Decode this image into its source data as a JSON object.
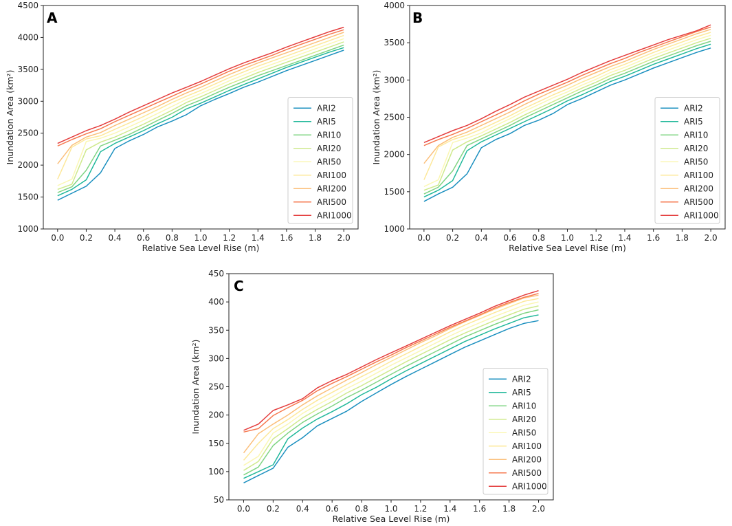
{
  "figure": {
    "series_names": [
      "ARI2",
      "ARI5",
      "ARI10",
      "ARI20",
      "ARI50",
      "ARI100",
      "ARI200",
      "ARI500",
      "ARI1000"
    ],
    "series_colors": [
      "#1a8fbf",
      "#20b89a",
      "#7fd483",
      "#cfe98c",
      "#fbf7b4",
      "#fde89a",
      "#fbbf7a",
      "#f6794f",
      "#e43d3d"
    ],
    "x_ticks": [
      "0.0",
      "0.2",
      "0.4",
      "0.6",
      "0.8",
      "1.0",
      "1.2",
      "1.4",
      "1.6",
      "1.8",
      "2.0"
    ]
  },
  "chart_data": [
    {
      "id": "A",
      "type": "line",
      "panel_label": "A",
      "xlabel": "Relative Sea Level Rise (m)",
      "ylabel": "Inundation Area (km²)",
      "xlim": [
        -0.1,
        2.1
      ],
      "ylim": [
        1000,
        4500
      ],
      "y_ticks": [
        1000,
        1500,
        2000,
        2500,
        3000,
        3500,
        4000,
        4500
      ],
      "legend_loc": "lower-right",
      "x": [
        0.0,
        0.1,
        0.2,
        0.3,
        0.4,
        0.5,
        0.6,
        0.7,
        0.8,
        0.9,
        1.0,
        1.1,
        1.2,
        1.3,
        1.4,
        1.5,
        1.6,
        1.7,
        1.8,
        1.9,
        2.0
      ],
      "series": [
        {
          "name": "ARI2",
          "values": [
            1450,
            1560,
            1670,
            1880,
            2260,
            2380,
            2480,
            2600,
            2690,
            2790,
            2930,
            3030,
            3120,
            3220,
            3300,
            3390,
            3480,
            3560,
            3640,
            3720,
            3800
          ]
        },
        {
          "name": "ARI5",
          "values": [
            1520,
            1620,
            1770,
            2210,
            2340,
            2440,
            2540,
            2650,
            2750,
            2880,
            2970,
            3070,
            3170,
            3260,
            3350,
            3440,
            3530,
            3610,
            3690,
            3770,
            3840
          ]
        },
        {
          "name": "ARI10",
          "values": [
            1570,
            1660,
            1920,
            2300,
            2390,
            2480,
            2590,
            2700,
            2810,
            2930,
            3020,
            3120,
            3220,
            3310,
            3400,
            3480,
            3560,
            3640,
            3720,
            3800,
            3880
          ]
        },
        {
          "name": "ARI20",
          "values": [
            1620,
            1700,
            2240,
            2360,
            2440,
            2540,
            2640,
            2750,
            2860,
            2980,
            3070,
            3170,
            3270,
            3360,
            3450,
            3530,
            3610,
            3690,
            3770,
            3850,
            3930
          ]
        },
        {
          "name": "ARI50",
          "values": [
            1680,
            1780,
            2370,
            2420,
            2500,
            2600,
            2700,
            2810,
            2920,
            3030,
            3120,
            3220,
            3320,
            3410,
            3500,
            3580,
            3660,
            3740,
            3820,
            3900,
            3980
          ]
        },
        {
          "name": "ARI100",
          "values": [
            1780,
            2280,
            2410,
            2460,
            2560,
            2660,
            2760,
            2870,
            2980,
            3080,
            3170,
            3270,
            3370,
            3460,
            3550,
            3630,
            3710,
            3790,
            3870,
            3950,
            4030
          ]
        },
        {
          "name": "ARI200",
          "values": [
            2020,
            2310,
            2440,
            2510,
            2620,
            2720,
            2820,
            2920,
            3030,
            3130,
            3220,
            3320,
            3420,
            3510,
            3600,
            3680,
            3760,
            3840,
            3920,
            4000,
            4080
          ]
        },
        {
          "name": "ARI500",
          "values": [
            2300,
            2400,
            2490,
            2570,
            2680,
            2780,
            2880,
            2980,
            3080,
            3180,
            3270,
            3370,
            3470,
            3560,
            3640,
            3720,
            3810,
            3890,
            3970,
            4050,
            4120
          ]
        },
        {
          "name": "ARI1000",
          "values": [
            2340,
            2440,
            2540,
            2620,
            2720,
            2830,
            2930,
            3030,
            3130,
            3220,
            3310,
            3410,
            3510,
            3600,
            3680,
            3760,
            3850,
            3930,
            4010,
            4090,
            4160
          ]
        }
      ]
    },
    {
      "id": "B",
      "type": "line",
      "panel_label": "B",
      "xlabel": "Relative Sea Level Rise (m)",
      "ylabel": "Inundation Area (km²)",
      "xlim": [
        -0.1,
        2.1
      ],
      "ylim": [
        1000,
        4000
      ],
      "y_ticks": [
        1000,
        1500,
        2000,
        2500,
        3000,
        3500,
        4000
      ],
      "legend_loc": "lower-right",
      "x": [
        0.0,
        0.1,
        0.2,
        0.3,
        0.4,
        0.5,
        0.6,
        0.7,
        0.8,
        0.9,
        1.0,
        1.1,
        1.2,
        1.3,
        1.4,
        1.5,
        1.6,
        1.7,
        1.8,
        1.9,
        2.0
      ],
      "series": [
        {
          "name": "ARI2",
          "values": [
            1370,
            1470,
            1560,
            1740,
            2090,
            2200,
            2280,
            2390,
            2460,
            2550,
            2670,
            2750,
            2840,
            2930,
            3000,
            3080,
            3160,
            3230,
            3300,
            3370,
            3430
          ]
        },
        {
          "name": "ARI5",
          "values": [
            1430,
            1520,
            1650,
            2050,
            2170,
            2260,
            2350,
            2440,
            2530,
            2620,
            2720,
            2800,
            2890,
            2980,
            3050,
            3130,
            3210,
            3280,
            3350,
            3420,
            3480
          ]
        },
        {
          "name": "ARI10",
          "values": [
            1470,
            1560,
            1780,
            2120,
            2210,
            2300,
            2390,
            2490,
            2580,
            2670,
            2760,
            2850,
            2930,
            3020,
            3090,
            3170,
            3250,
            3320,
            3390,
            3460,
            3520
          ]
        },
        {
          "name": "ARI20",
          "values": [
            1520,
            1590,
            2060,
            2170,
            2250,
            2340,
            2430,
            2530,
            2620,
            2710,
            2800,
            2890,
            2970,
            3060,
            3130,
            3210,
            3290,
            3360,
            3430,
            3500,
            3560
          ]
        },
        {
          "name": "ARI50",
          "values": [
            1570,
            1660,
            2160,
            2220,
            2290,
            2390,
            2480,
            2580,
            2670,
            2760,
            2840,
            2930,
            3010,
            3100,
            3170,
            3250,
            3330,
            3400,
            3470,
            3540,
            3600
          ]
        },
        {
          "name": "ARI100",
          "values": [
            1660,
            2100,
            2200,
            2260,
            2340,
            2430,
            2520,
            2620,
            2710,
            2800,
            2880,
            2970,
            3050,
            3140,
            3210,
            3290,
            3370,
            3440,
            3510,
            3580,
            3640
          ]
        },
        {
          "name": "ARI200",
          "values": [
            1880,
            2120,
            2230,
            2300,
            2390,
            2480,
            2570,
            2670,
            2760,
            2850,
            2930,
            3020,
            3100,
            3180,
            3250,
            3330,
            3410,
            3480,
            3550,
            3620,
            3680
          ]
        },
        {
          "name": "ARI500",
          "values": [
            2120,
            2200,
            2270,
            2350,
            2440,
            2530,
            2620,
            2720,
            2810,
            2890,
            2970,
            3060,
            3140,
            3220,
            3290,
            3370,
            3440,
            3510,
            3580,
            3650,
            3710
          ]
        },
        {
          "name": "ARI1000",
          "values": [
            2160,
            2240,
            2320,
            2390,
            2480,
            2580,
            2670,
            2770,
            2850,
            2930,
            3010,
            3100,
            3180,
            3260,
            3330,
            3400,
            3470,
            3540,
            3600,
            3660,
            3740
          ]
        }
      ]
    },
    {
      "id": "C",
      "type": "line",
      "panel_label": "C",
      "xlabel": "Relative Sea Level Rise (m)",
      "ylabel": "Inundation Area (km²)",
      "xlim": [
        -0.1,
        2.1
      ],
      "ylim": [
        50,
        450
      ],
      "y_ticks": [
        50,
        100,
        150,
        200,
        250,
        300,
        350,
        400,
        450
      ],
      "legend_loc": "lower-right",
      "x": [
        0.0,
        0.1,
        0.2,
        0.3,
        0.4,
        0.5,
        0.6,
        0.7,
        0.8,
        0.9,
        1.0,
        1.1,
        1.2,
        1.3,
        1.4,
        1.5,
        1.6,
        1.7,
        1.8,
        1.9,
        2.0
      ],
      "series": [
        {
          "name": "ARI2",
          "values": [
            80,
            93,
            106,
            143,
            160,
            181,
            194,
            207,
            224,
            239,
            254,
            268,
            281,
            294,
            307,
            320,
            331,
            342,
            353,
            362,
            367
          ]
        },
        {
          "name": "ARI5",
          "values": [
            88,
            100,
            112,
            158,
            177,
            193,
            206,
            220,
            236,
            249,
            264,
            278,
            291,
            304,
            317,
            330,
            341,
            352,
            362,
            372,
            377
          ]
        },
        {
          "name": "ARI10",
          "values": [
            94,
            108,
            146,
            168,
            187,
            202,
            216,
            231,
            244,
            258,
            272,
            286,
            299,
            312,
            325,
            338,
            349,
            360,
            370,
            380,
            386
          ]
        },
        {
          "name": "ARI20",
          "values": [
            102,
            118,
            158,
            176,
            195,
            210,
            224,
            239,
            252,
            266,
            280,
            294,
            307,
            320,
            333,
            345,
            356,
            367,
            377,
            387,
            393
          ]
        },
        {
          "name": "ARI50",
          "values": [
            111,
            127,
            168,
            184,
            203,
            218,
            232,
            247,
            260,
            274,
            288,
            301,
            314,
            327,
            340,
            352,
            363,
            374,
            384,
            394,
            400
          ]
        },
        {
          "name": "ARI100",
          "values": [
            120,
            150,
            176,
            192,
            210,
            226,
            240,
            254,
            268,
            281,
            295,
            308,
            321,
            334,
            347,
            359,
            370,
            381,
            391,
            401,
            406
          ]
        },
        {
          "name": "ARI200",
          "values": [
            133,
            167,
            184,
            200,
            218,
            234,
            248,
            262,
            275,
            289,
            302,
            315,
            328,
            340,
            353,
            365,
            376,
            387,
            397,
            407,
            412
          ]
        },
        {
          "name": "ARI500",
          "values": [
            170,
            176,
            199,
            213,
            226,
            243,
            256,
            268,
            281,
            294,
            306,
            319,
            331,
            343,
            355,
            366,
            377,
            389,
            399,
            408,
            415
          ]
        },
        {
          "name": "ARI1000",
          "values": [
            173,
            184,
            208,
            218,
            229,
            248,
            261,
            272,
            285,
            298,
            310,
            322,
            334,
            346,
            358,
            369,
            380,
            392,
            402,
            412,
            420
          ]
        }
      ]
    }
  ]
}
